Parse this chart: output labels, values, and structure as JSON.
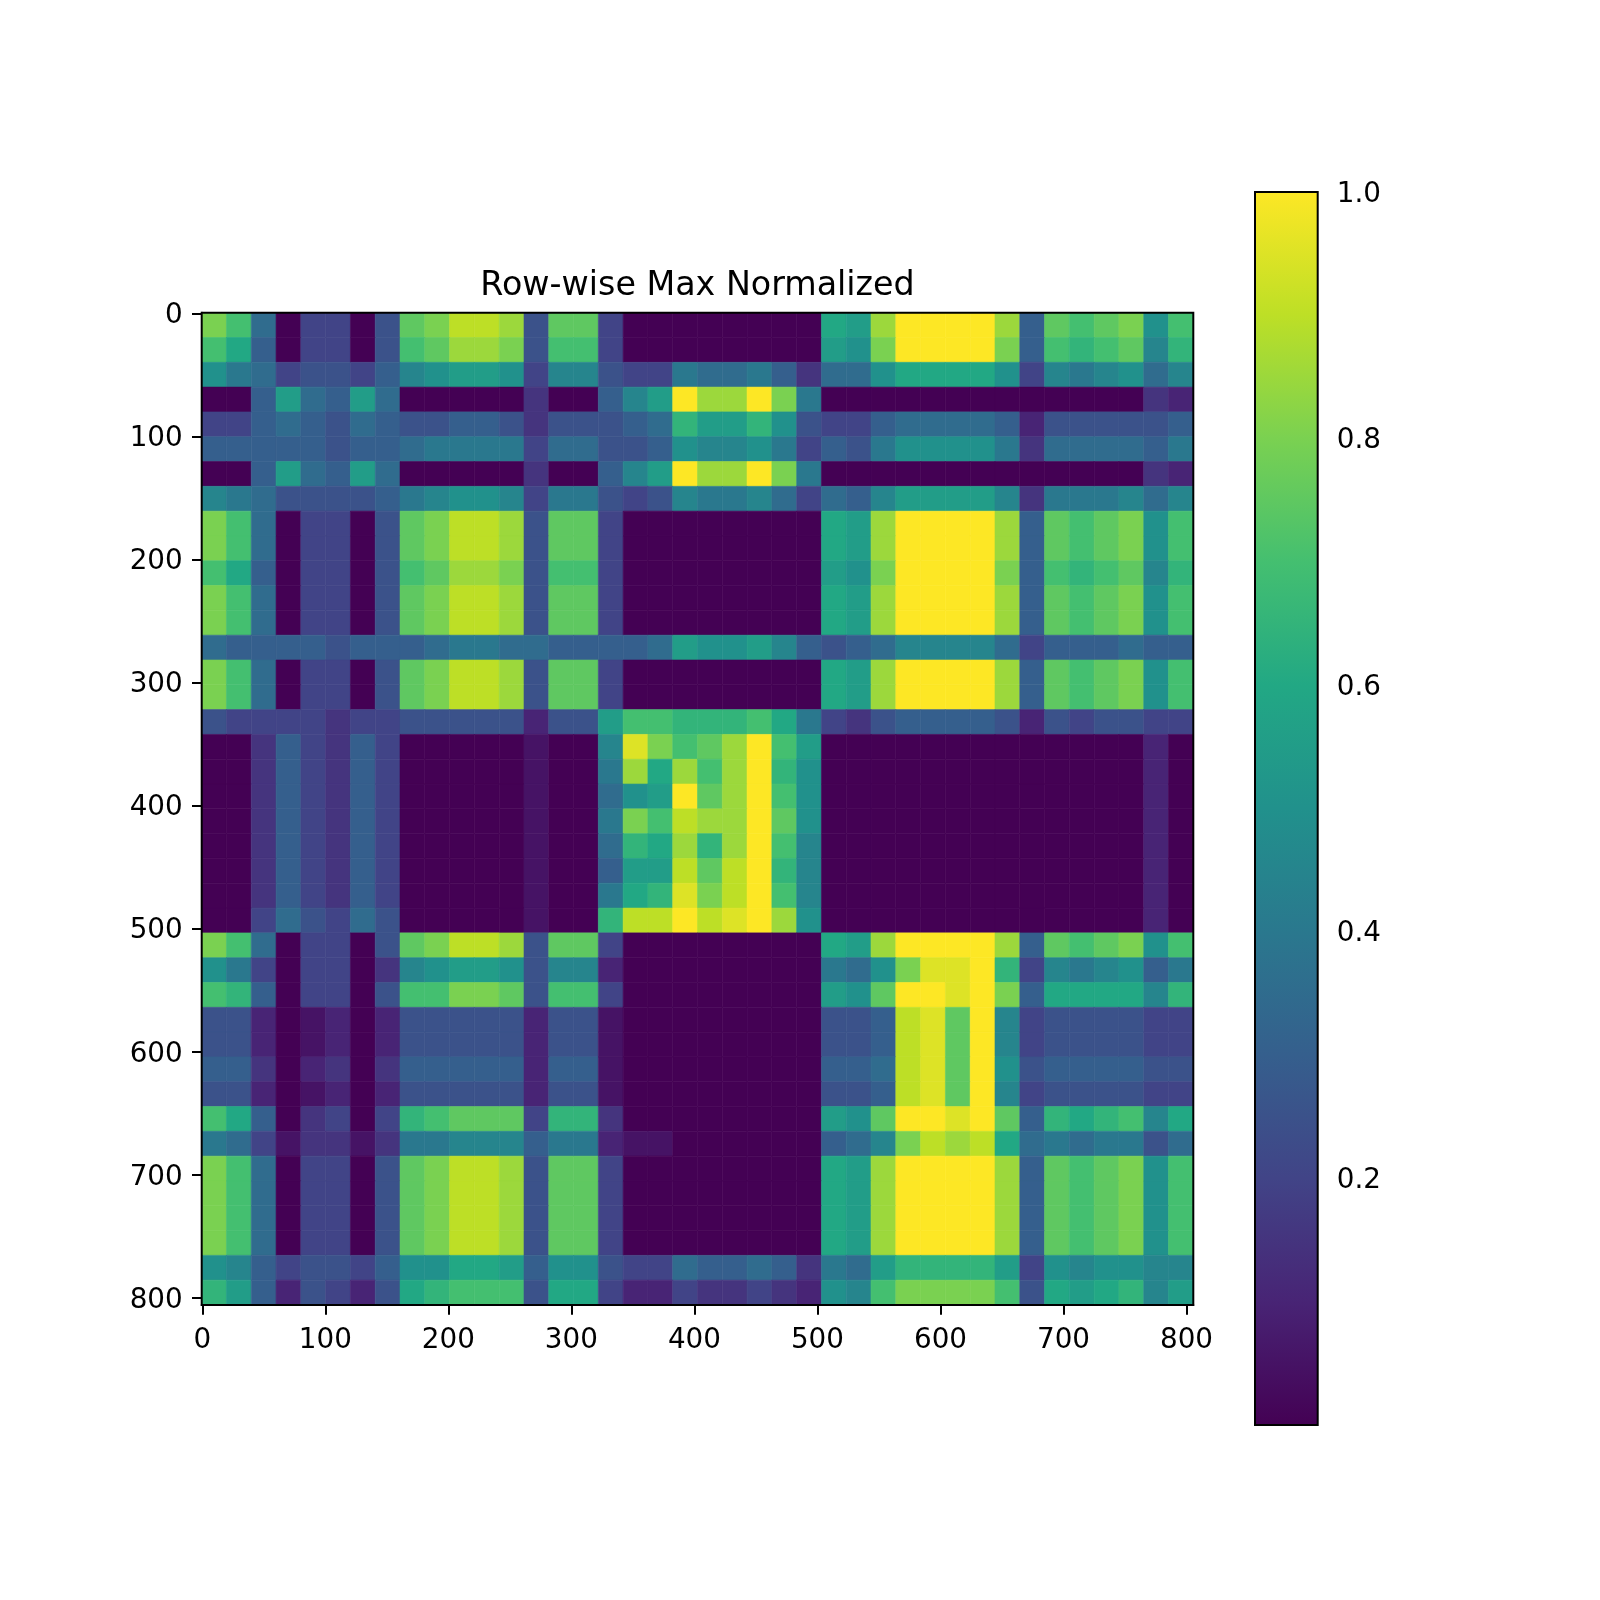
{
  "chart_data": {
    "type": "heatmap",
    "title": "Row-wise Max Normalized",
    "xlim": [
      -0.5,
      805.5
    ],
    "ylim": [
      805.5,
      -0.5
    ],
    "xticks": [
      0,
      100,
      200,
      300,
      400,
      500,
      600,
      700,
      800
    ],
    "yticks": [
      0,
      100,
      200,
      300,
      400,
      500,
      600,
      700,
      800
    ],
    "clim": [
      0,
      1
    ],
    "cticks": [
      0.2,
      0.4,
      0.6,
      0.8,
      {
        "value": 1,
        "label": "1.0"
      }
    ],
    "cells": [
      [
        0.8,
        0.7,
        0.35,
        0,
        0.2,
        0.2,
        0,
        0.25,
        0.75,
        0.8,
        0.9,
        0.9,
        0.85,
        0.25,
        0.75,
        0.75,
        0.2,
        0,
        0,
        0,
        0,
        0,
        0,
        0,
        0,
        0.6,
        0.55,
        0.85,
        1,
        1,
        1,
        1,
        0.85,
        0.3,
        0.75,
        0.7,
        0.75,
        0.8,
        0.5,
        0.7
      ],
      [
        0.7,
        0.6,
        0.3,
        0,
        0.2,
        0.2,
        0,
        0.25,
        0.7,
        0.75,
        0.85,
        0.85,
        0.8,
        0.25,
        0.7,
        0.7,
        0.2,
        0,
        0,
        0,
        0,
        0,
        0,
        0,
        0,
        0.55,
        0.5,
        0.8,
        1,
        1,
        1,
        1,
        0.8,
        0.3,
        0.7,
        0.65,
        0.7,
        0.75,
        0.45,
        0.65
      ],
      [
        0.5,
        0.4,
        0.35,
        0.2,
        0.25,
        0.25,
        0.2,
        0.3,
        0.45,
        0.5,
        0.55,
        0.55,
        0.5,
        0.2,
        0.45,
        0.45,
        0.25,
        0.2,
        0.2,
        0.4,
        0.35,
        0.35,
        0.4,
        0.3,
        0.15,
        0.35,
        0.35,
        0.5,
        0.6,
        0.6,
        0.6,
        0.6,
        0.5,
        0.2,
        0.45,
        0.4,
        0.45,
        0.5,
        0.35,
        0.45
      ],
      [
        0,
        0,
        0.3,
        0.55,
        0.35,
        0.3,
        0.55,
        0.35,
        0,
        0,
        0,
        0,
        0,
        0.15,
        0,
        0,
        0.3,
        0.45,
        0.55,
        1,
        0.85,
        0.85,
        1,
        0.8,
        0.4,
        0,
        0,
        0,
        0,
        0,
        0,
        0,
        0,
        0,
        0,
        0,
        0,
        0,
        0.15,
        0.1
      ],
      [
        0.2,
        0.2,
        0.3,
        0.35,
        0.3,
        0.25,
        0.35,
        0.3,
        0.25,
        0.25,
        0.3,
        0.3,
        0.25,
        0.15,
        0.25,
        0.25,
        0.25,
        0.3,
        0.35,
        0.65,
        0.55,
        0.55,
        0.65,
        0.5,
        0.25,
        0.2,
        0.2,
        0.3,
        0.35,
        0.35,
        0.35,
        0.35,
        0.3,
        0.1,
        0.25,
        0.25,
        0.25,
        0.25,
        0.25,
        0.3
      ],
      [
        0.3,
        0.3,
        0.3,
        0.3,
        0.3,
        0.25,
        0.3,
        0.3,
        0.35,
        0.4,
        0.4,
        0.4,
        0.4,
        0.2,
        0.35,
        0.35,
        0.25,
        0.25,
        0.3,
        0.5,
        0.45,
        0.45,
        0.5,
        0.4,
        0.2,
        0.3,
        0.25,
        0.4,
        0.5,
        0.5,
        0.5,
        0.5,
        0.4,
        0.15,
        0.35,
        0.35,
        0.35,
        0.35,
        0.3,
        0.4
      ],
      [
        0,
        0,
        0.3,
        0.55,
        0.35,
        0.3,
        0.55,
        0.35,
        0,
        0,
        0,
        0,
        0,
        0.15,
        0,
        0,
        0.3,
        0.45,
        0.55,
        1,
        0.85,
        0.85,
        1,
        0.8,
        0.4,
        0,
        0,
        0,
        0,
        0,
        0,
        0,
        0,
        0,
        0,
        0,
        0,
        0,
        0.15,
        0.1
      ],
      [
        0.45,
        0.4,
        0.35,
        0.25,
        0.25,
        0.25,
        0.25,
        0.3,
        0.4,
        0.45,
        0.5,
        0.5,
        0.45,
        0.2,
        0.4,
        0.4,
        0.25,
        0.2,
        0.25,
        0.45,
        0.4,
        0.4,
        0.45,
        0.35,
        0.2,
        0.35,
        0.3,
        0.45,
        0.55,
        0.55,
        0.55,
        0.55,
        0.45,
        0.15,
        0.4,
        0.4,
        0.4,
        0.45,
        0.35,
        0.45
      ],
      [
        0.8,
        0.7,
        0.35,
        0,
        0.2,
        0.2,
        0,
        0.25,
        0.75,
        0.8,
        0.9,
        0.9,
        0.85,
        0.25,
        0.75,
        0.75,
        0.2,
        0,
        0,
        0,
        0,
        0,
        0,
        0,
        0,
        0.6,
        0.55,
        0.85,
        1,
        1,
        1,
        1,
        0.85,
        0.3,
        0.75,
        0.7,
        0.75,
        0.8,
        0.5,
        0.7
      ],
      [
        0.8,
        0.7,
        0.35,
        0,
        0.2,
        0.2,
        0,
        0.25,
        0.75,
        0.8,
        0.9,
        0.9,
        0.85,
        0.25,
        0.75,
        0.75,
        0.2,
        0,
        0,
        0,
        0,
        0,
        0,
        0,
        0,
        0.6,
        0.55,
        0.85,
        1,
        1,
        1,
        1,
        0.85,
        0.3,
        0.75,
        0.7,
        0.75,
        0.8,
        0.5,
        0.7
      ],
      [
        0.7,
        0.6,
        0.3,
        0,
        0.2,
        0.2,
        0,
        0.25,
        0.7,
        0.75,
        0.85,
        0.85,
        0.8,
        0.25,
        0.7,
        0.7,
        0.2,
        0,
        0,
        0,
        0,
        0,
        0,
        0,
        0,
        0.55,
        0.5,
        0.8,
        1,
        1,
        1,
        1,
        0.8,
        0.3,
        0.7,
        0.65,
        0.7,
        0.75,
        0.45,
        0.65
      ],
      [
        0.8,
        0.7,
        0.35,
        0,
        0.2,
        0.2,
        0,
        0.25,
        0.75,
        0.8,
        0.9,
        0.9,
        0.85,
        0.25,
        0.75,
        0.75,
        0.2,
        0,
        0,
        0,
        0,
        0,
        0,
        0,
        0,
        0.6,
        0.55,
        0.85,
        1,
        1,
        1,
        1,
        0.85,
        0.3,
        0.75,
        0.7,
        0.75,
        0.8,
        0.5,
        0.7
      ],
      [
        0.8,
        0.7,
        0.35,
        0,
        0.2,
        0.2,
        0,
        0.25,
        0.75,
        0.8,
        0.9,
        0.9,
        0.85,
        0.25,
        0.75,
        0.75,
        0.2,
        0,
        0,
        0,
        0,
        0,
        0,
        0,
        0,
        0.6,
        0.55,
        0.85,
        1,
        1,
        1,
        1,
        0.85,
        0.3,
        0.75,
        0.7,
        0.75,
        0.8,
        0.5,
        0.7
      ],
      [
        0.35,
        0.3,
        0.3,
        0.3,
        0.3,
        0.25,
        0.3,
        0.3,
        0.3,
        0.35,
        0.4,
        0.4,
        0.35,
        0.35,
        0.3,
        0.3,
        0.3,
        0.3,
        0.35,
        0.55,
        0.5,
        0.5,
        0.55,
        0.45,
        0.3,
        0.25,
        0.3,
        0.35,
        0.45,
        0.45,
        0.45,
        0.45,
        0.35,
        0.2,
        0.3,
        0.3,
        0.3,
        0.35,
        0.3,
        0.3
      ],
      [
        0.8,
        0.7,
        0.35,
        0,
        0.2,
        0.2,
        0,
        0.25,
        0.75,
        0.8,
        0.9,
        0.9,
        0.85,
        0.25,
        0.75,
        0.75,
        0.2,
        0,
        0,
        0,
        0,
        0,
        0,
        0,
        0,
        0.6,
        0.55,
        0.85,
        1,
        1,
        1,
        1,
        0.85,
        0.3,
        0.75,
        0.7,
        0.75,
        0.8,
        0.5,
        0.7
      ],
      [
        0.8,
        0.7,
        0.35,
        0,
        0.2,
        0.2,
        0,
        0.25,
        0.75,
        0.8,
        0.9,
        0.9,
        0.85,
        0.25,
        0.75,
        0.75,
        0.2,
        0,
        0,
        0,
        0,
        0,
        0,
        0,
        0,
        0.6,
        0.55,
        0.85,
        1,
        1,
        1,
        1,
        0.85,
        0.3,
        0.75,
        0.7,
        0.75,
        0.8,
        0.5,
        0.7
      ],
      [
        0.25,
        0.2,
        0.2,
        0.2,
        0.2,
        0.15,
        0.2,
        0.2,
        0.25,
        0.25,
        0.25,
        0.25,
        0.25,
        0.1,
        0.25,
        0.25,
        0.55,
        0.7,
        0.7,
        0.65,
        0.65,
        0.65,
        0.7,
        0.6,
        0.4,
        0.2,
        0.15,
        0.25,
        0.3,
        0.3,
        0.3,
        0.3,
        0.25,
        0.1,
        0.25,
        0.2,
        0.25,
        0.25,
        0.2,
        0.2
      ],
      [
        0,
        0,
        0.15,
        0.3,
        0.2,
        0.15,
        0.3,
        0.2,
        0,
        0,
        0,
        0,
        0,
        0.05,
        0,
        0,
        0.45,
        0.95,
        0.8,
        0.7,
        0.75,
        0.85,
        1,
        0.7,
        0.55,
        0,
        0,
        0,
        0,
        0,
        0,
        0,
        0,
        0,
        0,
        0,
        0,
        0,
        0.1,
        0
      ],
      [
        0,
        0,
        0.15,
        0.3,
        0.2,
        0.15,
        0.3,
        0.2,
        0,
        0,
        0,
        0,
        0,
        0.05,
        0,
        0,
        0.4,
        0.85,
        0.6,
        0.85,
        0.7,
        0.85,
        1,
        0.65,
        0.5,
        0,
        0,
        0,
        0,
        0,
        0,
        0,
        0,
        0,
        0,
        0,
        0,
        0,
        0.1,
        0
      ],
      [
        0,
        0,
        0.15,
        0.3,
        0.2,
        0.15,
        0.3,
        0.2,
        0,
        0,
        0,
        0,
        0,
        0.05,
        0,
        0,
        0.35,
        0.5,
        0.55,
        1,
        0.75,
        0.85,
        1,
        0.7,
        0.5,
        0,
        0,
        0,
        0,
        0,
        0,
        0,
        0,
        0,
        0,
        0,
        0,
        0,
        0.1,
        0
      ],
      [
        0,
        0,
        0.15,
        0.3,
        0.2,
        0.15,
        0.3,
        0.2,
        0,
        0,
        0,
        0,
        0,
        0.05,
        0,
        0,
        0.4,
        0.8,
        0.7,
        0.9,
        0.85,
        0.85,
        1,
        0.75,
        0.5,
        0,
        0,
        0,
        0,
        0,
        0,
        0,
        0,
        0,
        0,
        0,
        0,
        0,
        0.1,
        0
      ],
      [
        0,
        0,
        0.15,
        0.3,
        0.2,
        0.15,
        0.3,
        0.2,
        0,
        0,
        0,
        0,
        0,
        0.05,
        0,
        0,
        0.35,
        0.65,
        0.6,
        0.85,
        0.65,
        0.85,
        1,
        0.7,
        0.45,
        0,
        0,
        0,
        0,
        0,
        0,
        0,
        0,
        0,
        0,
        0,
        0,
        0,
        0.1,
        0
      ],
      [
        0,
        0,
        0.15,
        0.3,
        0.2,
        0.15,
        0.3,
        0.2,
        0,
        0,
        0,
        0,
        0,
        0.05,
        0,
        0,
        0.3,
        0.55,
        0.55,
        0.9,
        0.75,
        0.9,
        1,
        0.65,
        0.45,
        0,
        0,
        0,
        0,
        0,
        0,
        0,
        0,
        0,
        0,
        0,
        0,
        0,
        0.1,
        0
      ],
      [
        0,
        0,
        0.15,
        0.3,
        0.2,
        0.15,
        0.3,
        0.2,
        0,
        0,
        0,
        0,
        0,
        0.05,
        0,
        0,
        0.4,
        0.6,
        0.65,
        0.95,
        0.8,
        0.9,
        1,
        0.7,
        0.45,
        0,
        0,
        0,
        0,
        0,
        0,
        0,
        0,
        0,
        0,
        0,
        0,
        0,
        0.1,
        0
      ],
      [
        0,
        0,
        0.2,
        0.35,
        0.25,
        0.2,
        0.35,
        0.25,
        0,
        0,
        0,
        0,
        0,
        0.05,
        0,
        0,
        0.65,
        0.9,
        0.9,
        1,
        0.9,
        0.95,
        1,
        0.85,
        0.5,
        0,
        0,
        0,
        0,
        0,
        0,
        0,
        0,
        0,
        0,
        0,
        0,
        0,
        0.1,
        0
      ],
      [
        0.8,
        0.7,
        0.35,
        0,
        0.2,
        0.2,
        0,
        0.25,
        0.75,
        0.8,
        0.9,
        0.9,
        0.85,
        0.25,
        0.75,
        0.75,
        0.2,
        0,
        0,
        0,
        0,
        0,
        0,
        0,
        0,
        0.6,
        0.55,
        0.85,
        1,
        1,
        1,
        1,
        0.85,
        0.3,
        0.75,
        0.7,
        0.75,
        0.8,
        0.5,
        0.7
      ],
      [
        0.5,
        0.4,
        0.2,
        0,
        0.2,
        0.2,
        0,
        0.15,
        0.45,
        0.5,
        0.55,
        0.55,
        0.5,
        0.25,
        0.45,
        0.45,
        0.1,
        0,
        0,
        0,
        0,
        0,
        0,
        0,
        0,
        0.4,
        0.35,
        0.5,
        0.8,
        0.95,
        0.95,
        1,
        0.65,
        0.2,
        0.45,
        0.4,
        0.45,
        0.5,
        0.3,
        0.4
      ],
      [
        0.7,
        0.65,
        0.3,
        0,
        0.2,
        0.2,
        0,
        0.25,
        0.7,
        0.7,
        0.8,
        0.8,
        0.75,
        0.25,
        0.7,
        0.7,
        0.2,
        0,
        0,
        0,
        0,
        0,
        0,
        0,
        0,
        0.55,
        0.5,
        0.75,
        1,
        1,
        0.95,
        1,
        0.8,
        0.3,
        0.6,
        0.6,
        0.6,
        0.6,
        0.45,
        0.65
      ],
      [
        0.25,
        0.25,
        0.1,
        0,
        0.05,
        0.1,
        0,
        0.1,
        0.25,
        0.25,
        0.25,
        0.25,
        0.25,
        0.1,
        0.25,
        0.25,
        0.05,
        0,
        0,
        0,
        0,
        0,
        0,
        0,
        0,
        0.25,
        0.25,
        0.3,
        0.9,
        0.95,
        0.75,
        1,
        0.45,
        0.2,
        0.25,
        0.25,
        0.25,
        0.25,
        0.2,
        0.2
      ],
      [
        0.25,
        0.25,
        0.1,
        0,
        0.05,
        0.1,
        0,
        0.1,
        0.25,
        0.25,
        0.25,
        0.25,
        0.25,
        0.1,
        0.25,
        0.25,
        0.05,
        0,
        0,
        0,
        0,
        0,
        0,
        0,
        0,
        0.25,
        0.25,
        0.3,
        0.9,
        0.95,
        0.75,
        1,
        0.45,
        0.2,
        0.25,
        0.25,
        0.25,
        0.25,
        0.2,
        0.2
      ],
      [
        0.3,
        0.3,
        0.15,
        0,
        0.1,
        0.15,
        0,
        0.15,
        0.3,
        0.3,
        0.3,
        0.3,
        0.3,
        0.1,
        0.3,
        0.3,
        0.05,
        0,
        0,
        0,
        0,
        0,
        0,
        0,
        0,
        0.3,
        0.3,
        0.35,
        0.9,
        0.95,
        0.75,
        1,
        0.5,
        0.25,
        0.3,
        0.3,
        0.3,
        0.3,
        0.25,
        0.25
      ],
      [
        0.25,
        0.25,
        0.1,
        0,
        0.05,
        0.1,
        0,
        0.1,
        0.25,
        0.25,
        0.25,
        0.25,
        0.25,
        0.1,
        0.25,
        0.25,
        0.05,
        0,
        0,
        0,
        0,
        0,
        0,
        0,
        0,
        0.25,
        0.25,
        0.3,
        0.9,
        0.95,
        0.75,
        1,
        0.45,
        0.2,
        0.25,
        0.25,
        0.25,
        0.25,
        0.2,
        0.2
      ],
      [
        0.7,
        0.6,
        0.3,
        0,
        0.15,
        0.2,
        0,
        0.2,
        0.65,
        0.7,
        0.75,
        0.75,
        0.75,
        0.2,
        0.65,
        0.65,
        0.15,
        0,
        0,
        0,
        0,
        0,
        0,
        0,
        0,
        0.55,
        0.5,
        0.75,
        1,
        1,
        0.95,
        1,
        0.75,
        0.3,
        0.65,
        0.6,
        0.65,
        0.7,
        0.45,
        0.6
      ],
      [
        0.4,
        0.35,
        0.2,
        0.05,
        0.15,
        0.15,
        0.05,
        0.15,
        0.4,
        0.4,
        0.45,
        0.45,
        0.45,
        0.3,
        0.4,
        0.4,
        0.1,
        0.05,
        0.05,
        0,
        0,
        0,
        0,
        0,
        0,
        0.3,
        0.35,
        0.45,
        0.8,
        0.9,
        0.85,
        0.9,
        0.6,
        0.35,
        0.4,
        0.35,
        0.4,
        0.4,
        0.25,
        0.35
      ],
      [
        0.8,
        0.7,
        0.35,
        0,
        0.2,
        0.2,
        0,
        0.25,
        0.75,
        0.8,
        0.9,
        0.9,
        0.85,
        0.25,
        0.75,
        0.75,
        0.2,
        0,
        0,
        0,
        0,
        0,
        0,
        0,
        0,
        0.6,
        0.55,
        0.85,
        1,
        1,
        1,
        1,
        0.85,
        0.3,
        0.75,
        0.7,
        0.75,
        0.8,
        0.5,
        0.7
      ],
      [
        0.8,
        0.7,
        0.35,
        0,
        0.2,
        0.2,
        0,
        0.25,
        0.75,
        0.8,
        0.9,
        0.9,
        0.85,
        0.25,
        0.75,
        0.75,
        0.2,
        0,
        0,
        0,
        0,
        0,
        0,
        0,
        0,
        0.6,
        0.55,
        0.85,
        1,
        1,
        1,
        1,
        0.85,
        0.3,
        0.75,
        0.7,
        0.75,
        0.8,
        0.5,
        0.7
      ],
      [
        0.8,
        0.7,
        0.35,
        0,
        0.2,
        0.2,
        0,
        0.25,
        0.75,
        0.8,
        0.9,
        0.9,
        0.85,
        0.25,
        0.75,
        0.75,
        0.2,
        0,
        0,
        0,
        0,
        0,
        0,
        0,
        0,
        0.6,
        0.55,
        0.85,
        1,
        1,
        1,
        1,
        0.85,
        0.3,
        0.75,
        0.7,
        0.75,
        0.8,
        0.5,
        0.7
      ],
      [
        0.8,
        0.7,
        0.35,
        0,
        0.2,
        0.2,
        0,
        0.25,
        0.75,
        0.8,
        0.9,
        0.9,
        0.85,
        0.25,
        0.75,
        0.75,
        0.2,
        0,
        0,
        0,
        0,
        0,
        0,
        0,
        0,
        0.6,
        0.55,
        0.85,
        1,
        1,
        1,
        1,
        0.85,
        0.3,
        0.75,
        0.7,
        0.75,
        0.8,
        0.5,
        0.7
      ],
      [
        0.5,
        0.45,
        0.3,
        0.2,
        0.25,
        0.25,
        0.2,
        0.3,
        0.5,
        0.5,
        0.6,
        0.6,
        0.55,
        0.3,
        0.5,
        0.5,
        0.25,
        0.2,
        0.2,
        0.35,
        0.3,
        0.3,
        0.35,
        0.3,
        0.15,
        0.4,
        0.35,
        0.55,
        0.65,
        0.65,
        0.65,
        0.65,
        0.55,
        0.2,
        0.5,
        0.45,
        0.5,
        0.5,
        0.45,
        0.45
      ],
      [
        0.65,
        0.55,
        0.3,
        0.1,
        0.25,
        0.2,
        0.1,
        0.25,
        0.6,
        0.65,
        0.7,
        0.7,
        0.7,
        0.25,
        0.6,
        0.6,
        0.2,
        0.1,
        0.1,
        0.2,
        0.15,
        0.15,
        0.2,
        0.15,
        0.1,
        0.5,
        0.45,
        0.7,
        0.8,
        0.8,
        0.8,
        0.8,
        0.7,
        0.25,
        0.6,
        0.55,
        0.6,
        0.65,
        0.45,
        0.55
      ]
    ]
  }
}
